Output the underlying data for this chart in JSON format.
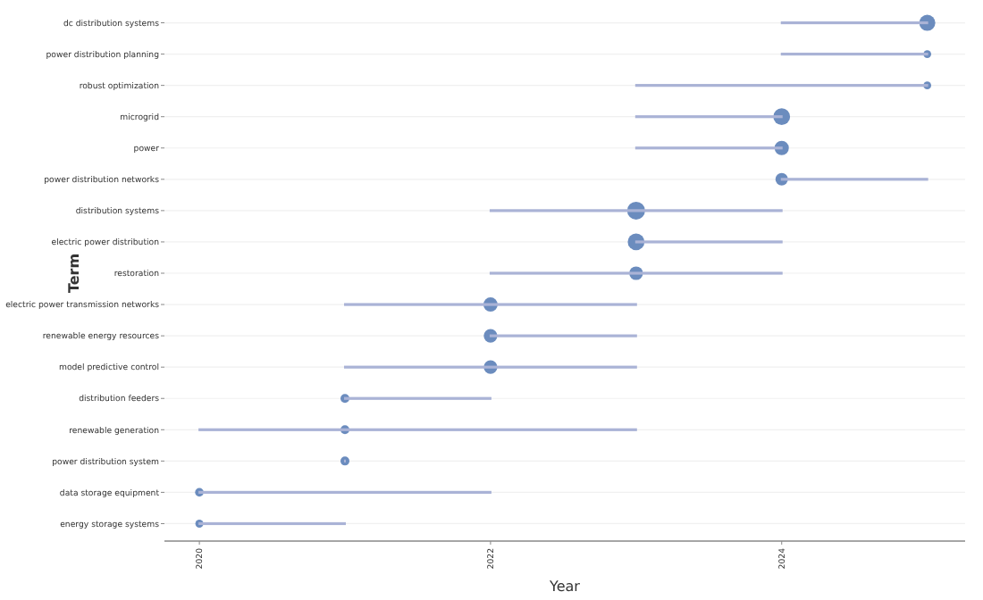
{
  "chart_data": {
    "type": "bar",
    "orientation": "horizontal",
    "xlabel": "Year",
    "ylabel": "Term",
    "grid": "y",
    "categories": [
      "dc distribution systems",
      "power distribution planning",
      "robust optimization",
      "microgrid",
      "power",
      "power distribution networks",
      "distribution systems",
      "electric power distribution",
      "restoration",
      "electric power transmission networks",
      "renewable energy resources",
      "model predictive control",
      "distribution feeders",
      "renewable generation",
      "power distribution system",
      "data storage equipment",
      "energy storage systems"
    ],
    "xlim": [
      2019.76,
      2025.26
    ],
    "xticks": [
      2020,
      2022,
      2024
    ],
    "color": "#aab3d6",
    "base": [
      2024,
      2024,
      2023,
      2023,
      2023,
      2024,
      2022,
      2023,
      2022,
      2021,
      2022,
      2021,
      2021,
      2020,
      2021,
      2020,
      2020
    ],
    "values": [
      1,
      1,
      2,
      1,
      1,
      1,
      2,
      1,
      2,
      2,
      1,
      2,
      1,
      3,
      0,
      2,
      1
    ],
    "series": [
      {
        "type": "bubble",
        "color": "#6b8cbe",
        "values": [
          2025,
          2025,
          2025,
          2024,
          2024,
          2024,
          2023,
          2023,
          2023,
          2022,
          2022,
          2022,
          2021,
          2021,
          2021,
          2020,
          2020
        ],
        "sizes": [
          0.81,
          0.19,
          0.19,
          0.88,
          0.64,
          0.49,
          1,
          0.88,
          0.58,
          0.64,
          0.58,
          0.58,
          0.25,
          0.25,
          0.25,
          0.23,
          0.2
        ]
      }
    ]
  }
}
